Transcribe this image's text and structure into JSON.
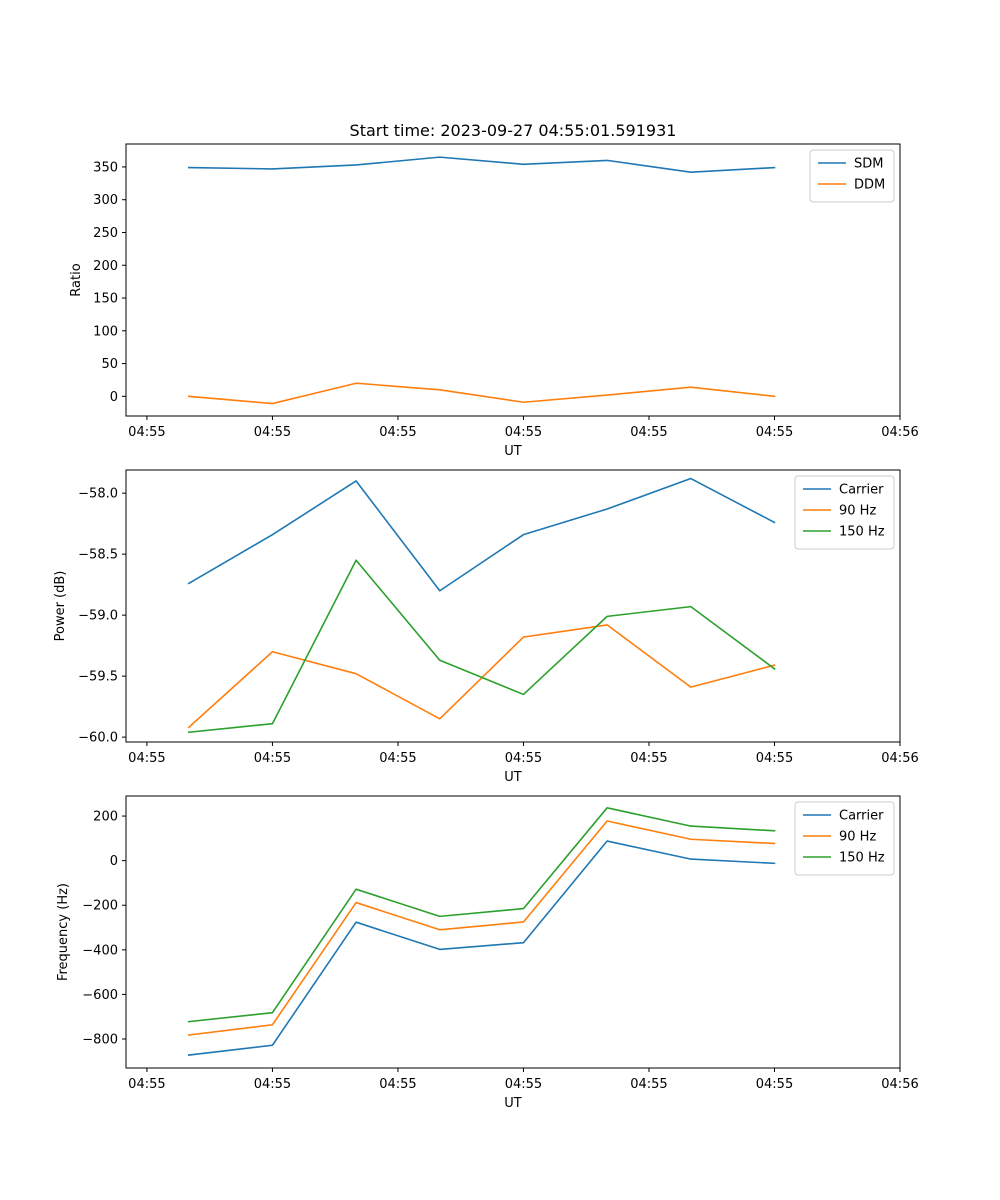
{
  "figure_title": "Start time: 2023-09-27 04:55:01.591931",
  "chart_data": [
    {
      "type": "line",
      "title": "Start time: 2023-09-27 04:55:01.591931",
      "xlabel": "UT",
      "ylabel": "Ratio",
      "x": [
        1,
        2,
        3,
        4,
        5,
        6,
        7,
        8
      ],
      "xlim": [
        0.25,
        9.5
      ],
      "x_ticks": [
        0.5,
        2,
        3.5,
        5,
        6.5,
        8,
        9.5
      ],
      "x_tick_labels": [
        "04:55",
        "04:55",
        "04:55",
        "04:55",
        "04:55",
        "04:55",
        "04:56"
      ],
      "ylim": [
        -30,
        385
      ],
      "y_ticks": [
        0,
        50,
        100,
        150,
        200,
        250,
        300,
        350
      ],
      "y_tick_labels": [
        "0",
        "50",
        "100",
        "150",
        "200",
        "250",
        "300",
        "350"
      ],
      "legend_position": "top-right",
      "series": [
        {
          "name": "SDM",
          "color": "#1f77b4",
          "values": [
            349,
            347,
            353,
            365,
            354,
            360,
            342,
            349
          ]
        },
        {
          "name": "DDM",
          "color": "#ff7f0e",
          "values": [
            0,
            -11,
            20,
            10,
            -9,
            2,
            14,
            0
          ]
        }
      ]
    },
    {
      "type": "line",
      "xlabel": "UT",
      "ylabel": "Power (dB)",
      "x": [
        1,
        2,
        3,
        4,
        5,
        6,
        7,
        8
      ],
      "xlim": [
        0.25,
        9.5
      ],
      "x_ticks": [
        0.5,
        2,
        3.5,
        5,
        6.5,
        8,
        9.5
      ],
      "x_tick_labels": [
        "04:55",
        "04:55",
        "04:55",
        "04:55",
        "04:55",
        "04:55",
        "04:56"
      ],
      "ylim": [
        -60.04,
        -57.81
      ],
      "y_ticks": [
        -60.0,
        -59.5,
        -59.0,
        -58.5,
        -58.0
      ],
      "y_tick_labels": [
        "−60.0",
        "−59.5",
        "−59.0",
        "−58.5",
        "−58.0"
      ],
      "legend_position": "top-right",
      "series": [
        {
          "name": "Carrier",
          "color": "#1f77b4",
          "values": [
            -58.74,
            -58.34,
            -57.9,
            -58.8,
            -58.34,
            -58.13,
            -57.88,
            -58.24
          ]
        },
        {
          "name": "90 Hz",
          "color": "#ff7f0e",
          "values": [
            -59.92,
            -59.3,
            -59.48,
            -59.85,
            -59.18,
            -59.08,
            -59.59,
            -59.41
          ]
        },
        {
          "name": "150 Hz",
          "color": "#2ca02c",
          "values": [
            -59.96,
            -59.89,
            -58.55,
            -59.37,
            -59.65,
            -59.01,
            -58.93,
            -59.44
          ]
        }
      ]
    },
    {
      "type": "line",
      "xlabel": "UT",
      "ylabel": "Frequency (Hz)",
      "x": [
        1,
        2,
        3,
        4,
        5,
        6,
        7,
        8
      ],
      "xlim": [
        0.25,
        9.5
      ],
      "x_ticks": [
        0.5,
        2,
        3.5,
        5,
        6.5,
        8,
        9.5
      ],
      "x_tick_labels": [
        "04:55",
        "04:55",
        "04:55",
        "04:55",
        "04:55",
        "04:55",
        "04:56"
      ],
      "ylim": [
        -930,
        290
      ],
      "y_ticks": [
        -800,
        -600,
        -400,
        -200,
        0,
        200
      ],
      "y_tick_labels": [
        "−800",
        "−600",
        "−400",
        "−200",
        "0",
        "200"
      ],
      "legend_position": "top-right",
      "series": [
        {
          "name": "Carrier",
          "color": "#1f77b4",
          "values": [
            -872,
            -828,
            -276,
            -398,
            -368,
            88,
            7,
            -12
          ]
        },
        {
          "name": "90 Hz",
          "color": "#ff7f0e",
          "values": [
            -782,
            -736,
            -188,
            -310,
            -275,
            178,
            96,
            77
          ]
        },
        {
          "name": "150 Hz",
          "color": "#2ca02c",
          "values": [
            -722,
            -682,
            -128,
            -250,
            -215,
            237,
            155,
            134
          ]
        }
      ]
    }
  ]
}
